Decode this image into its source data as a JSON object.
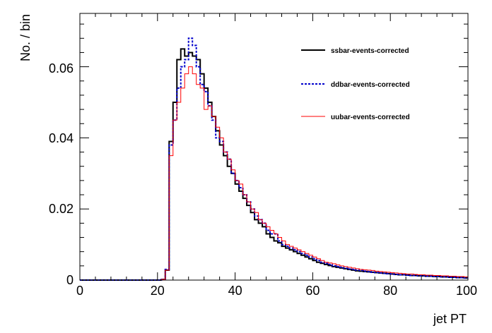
{
  "chart_data": {
    "type": "line",
    "title": "",
    "xlabel": "jet PT",
    "ylabel": "No. / bin",
    "xlim": [
      0,
      100
    ],
    "ylim": [
      0,
      0.075
    ],
    "x_ticks": [
      "0",
      "20",
      "40",
      "60",
      "80",
      "100"
    ],
    "y_ticks": [
      "0",
      "0.02",
      "0.04",
      "0.06"
    ],
    "grid": false,
    "legend_position": "top-right",
    "bin_width": 1,
    "series": [
      {
        "name": "ssbar-events-corrected",
        "color": "#000000",
        "style": "solid-thick",
        "x": [
          0,
          1,
          2,
          3,
          4,
          5,
          6,
          7,
          8,
          9,
          10,
          11,
          12,
          13,
          14,
          15,
          16,
          17,
          18,
          19,
          20,
          21,
          22,
          23,
          24,
          25,
          26,
          27,
          28,
          29,
          30,
          31,
          32,
          33,
          34,
          35,
          36,
          37,
          38,
          39,
          40,
          41,
          42,
          43,
          44,
          45,
          46,
          47,
          48,
          49,
          50,
          51,
          52,
          53,
          54,
          55,
          56,
          57,
          58,
          59,
          60,
          61,
          62,
          63,
          64,
          65,
          66,
          67,
          68,
          69,
          70,
          71,
          72,
          73,
          74,
          75,
          76,
          77,
          78,
          79,
          80,
          81,
          82,
          83,
          84,
          85,
          86,
          87,
          88,
          89,
          90,
          91,
          92,
          93,
          94,
          95,
          96,
          97,
          98,
          99
        ],
        "values": [
          0,
          0,
          0,
          0,
          0,
          0,
          0,
          0,
          0,
          0,
          0,
          0,
          0,
          0,
          0,
          0,
          0,
          0,
          0,
          0,
          0,
          0.0002,
          0.0028,
          0.039,
          0.05,
          0.062,
          0.065,
          0.063,
          0.064,
          0.063,
          0.062,
          0.058,
          0.054,
          0.05,
          0.046,
          0.042,
          0.038,
          0.035,
          0.032,
          0.03,
          0.027,
          0.025,
          0.023,
          0.021,
          0.019,
          0.017,
          0.016,
          0.015,
          0.013,
          0.012,
          0.011,
          0.0105,
          0.0095,
          0.009,
          0.0085,
          0.008,
          0.0075,
          0.007,
          0.0065,
          0.006,
          0.0055,
          0.005,
          0.0047,
          0.0044,
          0.0041,
          0.0038,
          0.0036,
          0.0034,
          0.0032,
          0.003,
          0.0028,
          0.0026,
          0.0025,
          0.0024,
          0.0023,
          0.0022,
          0.0021,
          0.002,
          0.0019,
          0.0018,
          0.0017,
          0.0016,
          0.0015,
          0.0015,
          0.0014,
          0.0013,
          0.0013,
          0.0012,
          0.0012,
          0.0011,
          0.0011,
          0.001,
          0.001,
          0.0009,
          0.0009,
          0.0008,
          0.0008,
          0.0007,
          0.0007,
          0.0006
        ]
      },
      {
        "name": "ddbar-events-corrected",
        "color": "#0000cc",
        "style": "dashed-thick",
        "x": [
          0,
          1,
          2,
          3,
          4,
          5,
          6,
          7,
          8,
          9,
          10,
          11,
          12,
          13,
          14,
          15,
          16,
          17,
          18,
          19,
          20,
          21,
          22,
          23,
          24,
          25,
          26,
          27,
          28,
          29,
          30,
          31,
          32,
          33,
          34,
          35,
          36,
          37,
          38,
          39,
          40,
          41,
          42,
          43,
          44,
          45,
          46,
          47,
          48,
          49,
          50,
          51,
          52,
          53,
          54,
          55,
          56,
          57,
          58,
          59,
          60,
          61,
          62,
          63,
          64,
          65,
          66,
          67,
          68,
          69,
          70,
          71,
          72,
          73,
          74,
          75,
          76,
          77,
          78,
          79,
          80,
          81,
          82,
          83,
          84,
          85,
          86,
          87,
          88,
          89,
          90,
          91,
          92,
          93,
          94,
          95,
          96,
          97,
          98,
          99
        ],
        "values": [
          0,
          0,
          0,
          0,
          0,
          0,
          0,
          0,
          0,
          0,
          0,
          0,
          0,
          0,
          0,
          0,
          0,
          0,
          0,
          0,
          0,
          0.0002,
          0.003,
          0.038,
          0.045,
          0.054,
          0.06,
          0.062,
          0.068,
          0.066,
          0.06,
          0.055,
          0.053,
          0.049,
          0.045,
          0.04,
          0.039,
          0.036,
          0.034,
          0.03,
          0.028,
          0.026,
          0.024,
          0.022,
          0.02,
          0.018,
          0.017,
          0.016,
          0.014,
          0.013,
          0.013,
          0.011,
          0.01,
          0.0095,
          0.009,
          0.0085,
          0.008,
          0.0075,
          0.007,
          0.0065,
          0.006,
          0.0055,
          0.005,
          0.0047,
          0.0044,
          0.004,
          0.0038,
          0.0036,
          0.0033,
          0.0031,
          0.003,
          0.0028,
          0.0027,
          0.0025,
          0.0024,
          0.0022,
          0.0021,
          0.002,
          0.0019,
          0.0018,
          0.0017,
          0.0016,
          0.0015,
          0.0015,
          0.0014,
          0.0013,
          0.0013,
          0.0012,
          0.0012,
          0.0011,
          0.0011,
          0.001,
          0.001,
          0.0009,
          0.0009,
          0.0008,
          0.0008,
          0.0007,
          0.0007,
          0.0006
        ]
      },
      {
        "name": "uubar-events-corrected",
        "color": "#ff0000",
        "style": "solid-thin",
        "x": [
          0,
          1,
          2,
          3,
          4,
          5,
          6,
          7,
          8,
          9,
          10,
          11,
          12,
          13,
          14,
          15,
          16,
          17,
          18,
          19,
          20,
          21,
          22,
          23,
          24,
          25,
          26,
          27,
          28,
          29,
          30,
          31,
          32,
          33,
          34,
          35,
          36,
          37,
          38,
          39,
          40,
          41,
          42,
          43,
          44,
          45,
          46,
          47,
          48,
          49,
          50,
          51,
          52,
          53,
          54,
          55,
          56,
          57,
          58,
          59,
          60,
          61,
          62,
          63,
          64,
          65,
          66,
          67,
          68,
          69,
          70,
          71,
          72,
          73,
          74,
          75,
          76,
          77,
          78,
          79,
          80,
          81,
          82,
          83,
          84,
          85,
          86,
          87,
          88,
          89,
          90,
          91,
          92,
          93,
          94,
          95,
          96,
          97,
          98,
          99
        ],
        "values": [
          0,
          0,
          0,
          0,
          0,
          0,
          0,
          0,
          0,
          0,
          0,
          0,
          0,
          0,
          0,
          0,
          0,
          0,
          0,
          0,
          0,
          0.0002,
          0.0028,
          0.035,
          0.045,
          0.05,
          0.054,
          0.058,
          0.06,
          0.058,
          0.055,
          0.054,
          0.048,
          0.049,
          0.046,
          0.043,
          0.04,
          0.036,
          0.034,
          0.031,
          0.028,
          0.027,
          0.024,
          0.022,
          0.02,
          0.019,
          0.017,
          0.016,
          0.015,
          0.014,
          0.013,
          0.012,
          0.011,
          0.01,
          0.0095,
          0.009,
          0.0085,
          0.008,
          0.0075,
          0.007,
          0.0065,
          0.006,
          0.0055,
          0.005,
          0.0048,
          0.0046,
          0.0043,
          0.004,
          0.0038,
          0.0036,
          0.0034,
          0.0032,
          0.003,
          0.0029,
          0.0028,
          0.0027,
          0.0025,
          0.0024,
          0.0023,
          0.0022,
          0.0021,
          0.002,
          0.0019,
          0.0018,
          0.0017,
          0.0017,
          0.0016,
          0.0015,
          0.0015,
          0.0014,
          0.0014,
          0.0013,
          0.0013,
          0.0012,
          0.0012,
          0.0011,
          0.0011,
          0.001,
          0.001,
          0.0009
        ]
      }
    ]
  }
}
